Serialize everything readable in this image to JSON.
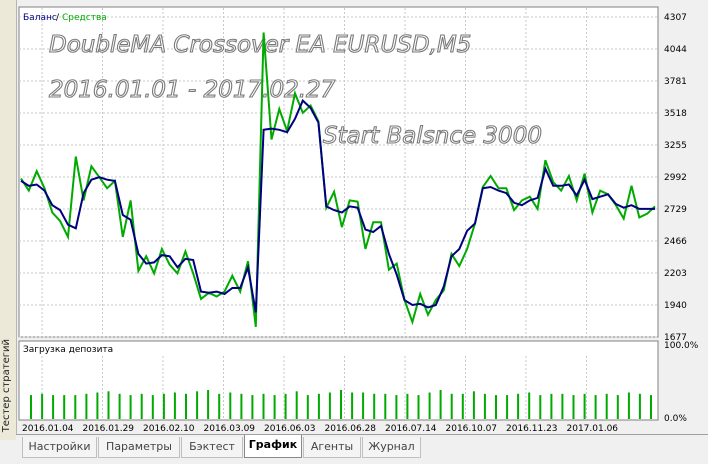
{
  "window": {
    "side_label": "Тестер стратегий"
  },
  "tabs": [
    {
      "label": "Настройки",
      "active": false
    },
    {
      "label": "Параметры",
      "active": false
    },
    {
      "label": "Бэктест",
      "active": false
    },
    {
      "label": "График",
      "active": true
    },
    {
      "label": "Агенты",
      "active": false
    },
    {
      "label": "Журнал",
      "active": false
    }
  ],
  "overlay": {
    "line1": "DoubleMA Crossover EA EURUSD,M5",
    "line2": "2016.01.01 - 2017.02.27",
    "line3": "Start Balsnce 3000"
  },
  "chart_data": [
    {
      "type": "line",
      "legend": {
        "balance": "Баланс",
        "separator": "/",
        "equity": "Средства"
      },
      "y_ticks": [
        4307,
        4044,
        3781,
        3518,
        3255,
        2992,
        2729,
        2466,
        2203,
        1940,
        1677
      ],
      "ylim": [
        1677,
        4307
      ],
      "x_tick_labels": [
        "2016.01.04",
        "2016.01.29",
        "2016.02.10",
        "2016.03.09",
        "2016.06.03",
        "2016.06.28",
        "2016.07.14",
        "2016.10.07",
        "2016.11.23",
        "2017.01.06"
      ],
      "grid": true,
      "colors": {
        "balance": "#000080",
        "equity": "#00aa00",
        "grid": "#c8c8c8"
      },
      "series": [
        {
          "name": "Баланс",
          "values": [
            2960,
            2920,
            2930,
            2880,
            2760,
            2720,
            2600,
            2570,
            2860,
            2970,
            2990,
            2970,
            2960,
            2680,
            2640,
            2360,
            2280,
            2290,
            2350,
            2340,
            2250,
            2320,
            2310,
            2050,
            2040,
            2050,
            2030,
            2080,
            2080,
            2250,
            1880,
            3380,
            3390,
            3380,
            3360,
            3470,
            3620,
            3560,
            3440,
            2750,
            2720,
            2700,
            2750,
            2740,
            2560,
            2540,
            2590,
            2360,
            2190,
            1980,
            1940,
            1950,
            1920,
            1940,
            2090,
            2340,
            2400,
            2550,
            2610,
            2900,
            2910,
            2880,
            2860,
            2780,
            2760,
            2800,
            2820,
            3060,
            2920,
            2920,
            2930,
            2840,
            2970,
            2810,
            2830,
            2850,
            2770,
            2740,
            2760,
            2730,
            2730,
            2730
          ]
        },
        {
          "name": "Средства",
          "values": [
            2980,
            2880,
            3040,
            2900,
            2700,
            2630,
            2500,
            3160,
            2800,
            3080,
            2990,
            2900,
            2960,
            2500,
            2800,
            2220,
            2340,
            2200,
            2400,
            2270,
            2200,
            2380,
            2200,
            1990,
            2040,
            2010,
            2050,
            2180,
            2050,
            2300,
            1760,
            4180,
            3300,
            3550,
            3370,
            3680,
            3520,
            3580,
            3450,
            2740,
            2870,
            2580,
            2800,
            2790,
            2400,
            2620,
            2620,
            2230,
            2280,
            1980,
            1800,
            2030,
            1860,
            1980,
            2060,
            2360,
            2260,
            2400,
            2610,
            2910,
            3000,
            2900,
            2900,
            2720,
            2800,
            2830,
            2730,
            3130,
            2950,
            2880,
            3000,
            2800,
            3020,
            2700,
            2880,
            2850,
            2760,
            2650,
            2920,
            2660,
            2690,
            2750
          ]
        }
      ]
    },
    {
      "type": "bar",
      "title": "Загрузка депозита",
      "y_ticks": [
        "100.0%",
        "0.0%"
      ],
      "ylim": [
        0,
        100
      ],
      "color": "#00aa00",
      "values": [
        38,
        40,
        38,
        38,
        38,
        40,
        42,
        44,
        40,
        38,
        40,
        38,
        40,
        42,
        40,
        44,
        46,
        40,
        42,
        40,
        38,
        40,
        38,
        40,
        44,
        38,
        40,
        42,
        46,
        42,
        42,
        40,
        40,
        38,
        40,
        38,
        42,
        46,
        40,
        40,
        44,
        40,
        38,
        38,
        40,
        42,
        38,
        40,
        40,
        38,
        40,
        38,
        40,
        38,
        42,
        40,
        38
      ]
    }
  ]
}
